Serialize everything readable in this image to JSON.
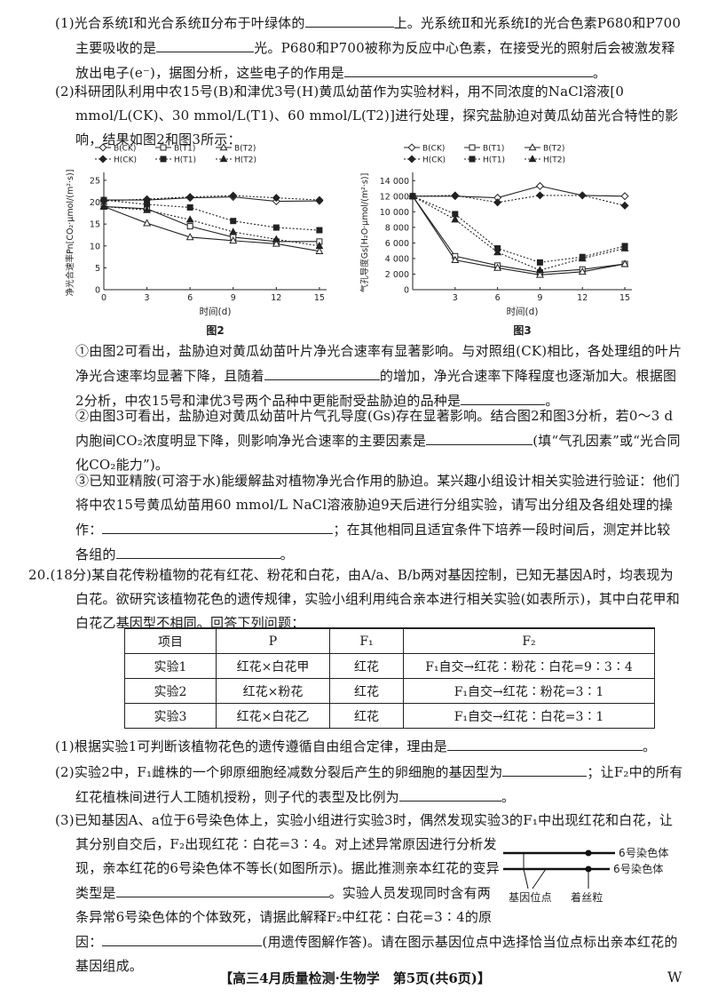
{
  "p1": [
    "(1)光合系统Ⅰ和光合系统Ⅱ分布于叶绿体的",
    "上。光系统Ⅱ和光系统Ⅰ的光合色素P680和P700主要吸收的是",
    "光。P680和P700被称为反应中心色素，在接受光的照射后会被激发释放出电子(e⁻)，据图分析，这些电子的作用是",
    "。"
  ],
  "p2": [
    "(2)科研团队利用中农15号(B)和津优3号(H)黄瓜幼苗作为实验材料，用不同浓度的NaCl溶液[0 mmol/L(CK)、30 mmol/L(T1)、60 mmol/L(T2)]进行处理，探究盐胁迫对黄瓜幼苗光合特性的影响，结果如图2和图3所示："
  ],
  "figures": [
    {
      "type": "line",
      "caption": "图2",
      "ylabel": "净光合速率Pn[CO₂·μmol/(m²·s)]",
      "xlabel": "时间(d)",
      "x": [
        0,
        3,
        6,
        9,
        12,
        15
      ],
      "xlim": [
        0,
        15.5
      ],
      "xticks": [
        0,
        3,
        6,
        9,
        12,
        15
      ],
      "ylim": [
        0,
        26
      ],
      "yticks": [
        0,
        5,
        10,
        15,
        20,
        25
      ],
      "series": [
        {
          "name": "B(CK)",
          "color": "#222",
          "marker": "diamond",
          "filled": false,
          "dotted": false,
          "values": [
            20.5,
            20.5,
            21,
            21.2,
            20.2,
            20.3
          ]
        },
        {
          "name": "B(T1)",
          "color": "#222",
          "marker": "square",
          "filled": false,
          "dotted": false,
          "values": [
            19,
            18.5,
            14.5,
            12,
            11,
            11
          ]
        },
        {
          "name": "B(T2)",
          "color": "#222",
          "marker": "triangle",
          "filled": false,
          "dotted": false,
          "values": [
            19,
            15.2,
            12,
            11.2,
            10.5,
            8.8
          ]
        },
        {
          "name": "H(CK)",
          "color": "#222",
          "marker": "diamond",
          "filled": true,
          "dotted": true,
          "values": [
            20.3,
            20.7,
            21.2,
            21.5,
            21,
            20.5
          ]
        },
        {
          "name": "H(T1)",
          "color": "#222",
          "marker": "square",
          "filled": true,
          "dotted": true,
          "values": [
            20.5,
            19.5,
            18.8,
            15.7,
            14.2,
            13.6
          ]
        },
        {
          "name": "H(T2)",
          "color": "#222",
          "marker": "triangle",
          "filled": true,
          "dotted": true,
          "values": [
            19,
            18.2,
            16,
            13.2,
            11.5,
            10
          ]
        }
      ]
    },
    {
      "type": "line",
      "caption": "图3",
      "ylabel": "气孔导度Gs[H₂O·μmol/(m²·s)]",
      "xlabel": "时间(d)",
      "x": [
        0,
        3,
        6,
        9,
        12,
        15
      ],
      "xlim": [
        0,
        15.5
      ],
      "xticks": [
        3,
        6,
        9,
        12,
        15
      ],
      "ylim": [
        0,
        14600
      ],
      "yticks": [
        0,
        {
          "value": 2000,
          "label": "2 000"
        },
        {
          "value": 4000,
          "label": "4 000"
        },
        {
          "value": 6000,
          "label": "6 000"
        },
        {
          "value": 8000,
          "label": "8 000"
        },
        {
          "value": 10000,
          "label": "10 000"
        },
        {
          "value": 12000,
          "label": "12 000"
        },
        {
          "value": 14000,
          "label": "14 000"
        }
      ],
      "series": [
        {
          "name": "B(CK)",
          "color": "#222",
          "marker": "diamond",
          "filled": false,
          "dotted": false,
          "values": [
            12000,
            12000,
            11800,
            13300,
            12100,
            12000
          ]
        },
        {
          "name": "B(T1)",
          "color": "#222",
          "marker": "square",
          "filled": false,
          "dotted": false,
          "values": [
            12000,
            4300,
            3100,
            2200,
            2600,
            3300
          ]
        },
        {
          "name": "B(T2)",
          "color": "#222",
          "marker": "triangle",
          "filled": false,
          "dotted": false,
          "values": [
            12000,
            3800,
            2800,
            1900,
            2300,
            3300
          ]
        },
        {
          "name": "H(CK)",
          "color": "#222",
          "marker": "diamond",
          "filled": true,
          "dotted": true,
          "values": [
            12000,
            12100,
            11200,
            12100,
            12100,
            10800
          ]
        },
        {
          "name": "H(T1)",
          "color": "#222",
          "marker": "square",
          "filled": true,
          "dotted": true,
          "values": [
            12000,
            9700,
            5300,
            3500,
            4200,
            5600
          ]
        },
        {
          "name": "H(T2)",
          "color": "#222",
          "marker": "triangle",
          "filled": true,
          "dotted": true,
          "values": [
            12000,
            9000,
            4800,
            2500,
            4000,
            5300
          ]
        }
      ]
    }
  ],
  "p2_1": [
    "①由图2可看出，盐胁迫对黄瓜幼苗叶片净光合速率有显著影响。与对照组(CK)相比，各处理组的叶片净光合速率均显著下降，且随着",
    "的增加，净光合速率下降程度也逐渐加大。根据图2分析，中农15号和津优3号两个品种中更能耐受盐胁迫的品种是",
    "。"
  ],
  "p2_2": [
    "②由图3可看出，盐胁迫对黄瓜幼苗叶片气孔导度(Gs)存在显著影响。结合图2和图3分析，若0～3 d内胞间CO₂浓度明显下降，则影响净光合速率的主要因素是",
    "(填“气孔因素”或“光合同化CO₂能力”)。"
  ],
  "p2_3": [
    "③已知亚精胺(可溶于水)能缓解盐对植物净光合作用的胁迫。某兴趣小组设计相关实验进行验证：他们将中农15号黄瓜幼苗用60 mmol/L NaCl溶液胁迫9天后进行分组实验，请写出分组及各组处理的操作：",
    "；在其他相同且适宜条件下培养一段时间后，测定并比较各组的",
    "。"
  ],
  "q20": [
    "20.(18分)某自花传粉植物的花有红花、粉花和白花，由A/a、B/b两对基因控制，已知无基因A时，均表现为白花。欲研究该植物花色的遗传规律，实验小组利用纯合亲本进行相关实验(如表所示)，其中白花甲和白花乙基因型不相同。回答下列问题："
  ],
  "table": {
    "header": [
      "项目",
      "P",
      "F₁",
      "F₂"
    ],
    "rows": [
      [
        "实验1",
        "红花×白花甲",
        "红花",
        "F₁自交→红花∶粉花∶白花=9∶3∶4"
      ],
      [
        "实验2",
        "红花×粉花",
        "红花",
        "F₁自交→红花∶粉花=3∶1"
      ],
      [
        "实验3",
        "红花×白花乙",
        "红花",
        "F₁自交→红花∶白花=3∶1"
      ]
    ]
  },
  "q20_1": [
    "(1)根据实验1可判断该植物花色的遗传遵循自由组合定律，理由是",
    "。"
  ],
  "q20_2": [
    "(2)实验2中，F₁雌株的一个卵原细胞经减数分裂后产生的卵细胞的基因型为",
    "；让F₂中的所有红花植株间进行人工随机授粉，则子代的表型及比例为",
    "。"
  ],
  "q20_3": [
    "(3)已知基因A、a位于6号染色体上，实验小组进行实验3时，偶然发现实验3的F₁中出现红花和白花，让其分别自交后，F₂出现红花∶白花=3∶4。对上述异常原因进行分析发现，亲本红花的6号染色体不等长(如图所示)。据此推测亲本红花的变异类型是",
    "。实验人员发现同时含有两条异常6号染色体的个体致死，请据此解释F₂中红花∶白花=3∶4的原因：",
    "(用遗传图解作答)。请在图示基因位点中选择恰当位点标出亲本红花的基因组成。"
  ],
  "diagram": {
    "chrom1": "6号染色体",
    "chrom2": "6号染色体",
    "site": "基因位点",
    "centromere": "着丝粒"
  },
  "footer": {
    "text": "【高三4月质量检测·生物学　第5页(共6页)】",
    "mark": "W"
  }
}
